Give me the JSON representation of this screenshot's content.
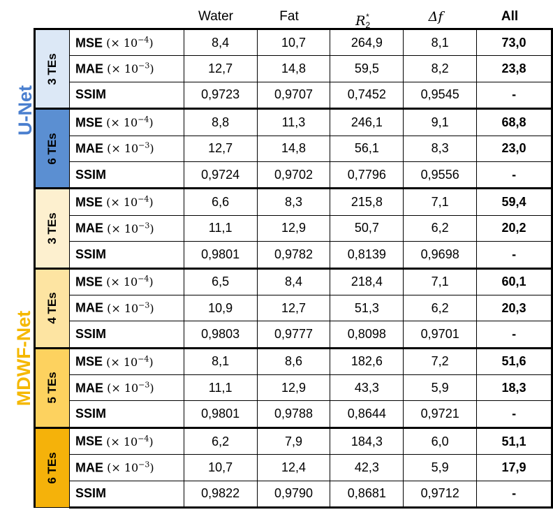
{
  "headers": {
    "water": "Water",
    "fat": "Fat",
    "r2_base": "R",
    "r2_sub": "2",
    "r2_sup": "*",
    "delta_f": "Δf",
    "all": "All"
  },
  "model_labels": {
    "unet": "U-Net",
    "mdwf": "MDWF-Net"
  },
  "colors": {
    "unet_label": "#4a7fcf",
    "mdwf_label": "#f5b800",
    "unet_3": "#dce8f6",
    "unet_6": "#5b8fd2",
    "mdwf_3": "#fdf0cf",
    "mdwf_4": "#fde4a2",
    "mdwf_5": "#fdd25f",
    "mdwf_6": "#f5b20a"
  },
  "metric_labels": {
    "mse": "MSE",
    "mse_scale": "(× 10",
    "mse_exp": "−4",
    "mae": "MAE",
    "mae_scale": "(× 10",
    "mae_exp": "−3",
    "close": ")",
    "ssim": "SSIM"
  },
  "groups": [
    {
      "te_label": "3 TEs",
      "mse": [
        "8,4",
        "10,7",
        "264,9",
        "8,1",
        "73,0"
      ],
      "mae": [
        "12,7",
        "14,8",
        "59,5",
        "8,2",
        "23,8"
      ],
      "ssim": [
        "0,9723",
        "0,9707",
        "0,7452",
        "0,9545",
        "-"
      ]
    },
    {
      "te_label": "6 TEs",
      "mse": [
        "8,8",
        "11,3",
        "246,1",
        "9,1",
        "68,8"
      ],
      "mae": [
        "12,7",
        "14,8",
        "56,1",
        "8,3",
        "23,0"
      ],
      "ssim": [
        "0,9724",
        "0,9702",
        "0,7796",
        "0,9556",
        "-"
      ]
    },
    {
      "te_label": "3 TEs",
      "mse": [
        "6,6",
        "8,3",
        "215,8",
        "7,1",
        "59,4"
      ],
      "mae": [
        "11,1",
        "12,9",
        "50,7",
        "6,2",
        "20,2"
      ],
      "ssim": [
        "0,9801",
        "0,9782",
        "0,8139",
        "0,9698",
        "-"
      ]
    },
    {
      "te_label": "4 TEs",
      "mse": [
        "6,5",
        "8,4",
        "218,4",
        "7,1",
        "60,1"
      ],
      "mae": [
        "10,9",
        "12,7",
        "51,3",
        "6,2",
        "20,3"
      ],
      "ssim": [
        "0,9803",
        "0,9777",
        "0,8098",
        "0,9701",
        "-"
      ]
    },
    {
      "te_label": "5 TEs",
      "mse": [
        "8,1",
        "8,6",
        "182,6",
        "7,2",
        "51,6"
      ],
      "mae": [
        "11,1",
        "12,9",
        "43,3",
        "5,9",
        "18,3"
      ],
      "ssim": [
        "0,9801",
        "0,9788",
        "0,8644",
        "0,9721",
        "-"
      ]
    },
    {
      "te_label": "6 TEs",
      "mse": [
        "6,2",
        "7,9",
        "184,3",
        "6,0",
        "51,1"
      ],
      "mae": [
        "10,7",
        "12,4",
        "42,3",
        "5,9",
        "17,9"
      ],
      "ssim": [
        "0,9822",
        "0,9790",
        "0,8681",
        "0,9712",
        "-"
      ]
    }
  ]
}
